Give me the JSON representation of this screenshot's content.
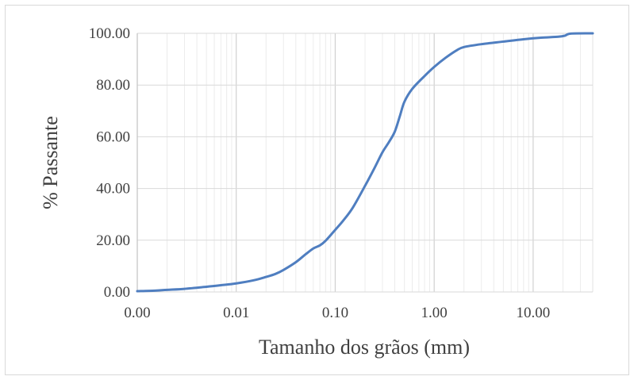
{
  "chart_data": {
    "type": "line",
    "title": "",
    "xlabel": "Tamanho dos grãos (mm)",
    "ylabel": "% Passante",
    "x_scale": "log",
    "xlim": [
      0.001,
      40
    ],
    "ylim": [
      0,
      100
    ],
    "x_ticks": [
      0.001,
      0.01,
      0.1,
      1,
      10
    ],
    "x_tick_labels": [
      "0.00",
      "0.01",
      "0.10",
      "1.00",
      "10.00"
    ],
    "y_ticks": [
      0,
      20,
      40,
      60,
      80,
      100
    ],
    "y_tick_labels": [
      "0.00",
      "20.00",
      "40.00",
      "60.00",
      "80.00",
      "100.00"
    ],
    "grid": true,
    "legend": "none",
    "series": [
      {
        "color": "#4f7ec0",
        "points": [
          [
            0.001,
            0.3
          ],
          [
            0.0015,
            0.5
          ],
          [
            0.002,
            0.8
          ],
          [
            0.003,
            1.2
          ],
          [
            0.005,
            2.0
          ],
          [
            0.007,
            2.6
          ],
          [
            0.01,
            3.3
          ],
          [
            0.015,
            4.5
          ],
          [
            0.02,
            5.8
          ],
          [
            0.025,
            7.0
          ],
          [
            0.03,
            8.5
          ],
          [
            0.04,
            11.5
          ],
          [
            0.05,
            14.5
          ],
          [
            0.06,
            16.8
          ],
          [
            0.07,
            18.0
          ],
          [
            0.08,
            19.8
          ],
          [
            0.1,
            24.0
          ],
          [
            0.12,
            27.5
          ],
          [
            0.15,
            32.5
          ],
          [
            0.2,
            41.0
          ],
          [
            0.25,
            48.0
          ],
          [
            0.3,
            54.0
          ],
          [
            0.35,
            58.0
          ],
          [
            0.4,
            62.0
          ],
          [
            0.45,
            68.0
          ],
          [
            0.5,
            73.5
          ],
          [
            0.6,
            78.5
          ],
          [
            0.8,
            83.5
          ],
          [
            1.0,
            87.0
          ],
          [
            1.3,
            90.5
          ],
          [
            1.7,
            93.5
          ],
          [
            2.0,
            94.7
          ],
          [
            3.0,
            95.8
          ],
          [
            5.0,
            96.8
          ],
          [
            8.0,
            97.7
          ],
          [
            12.0,
            98.3
          ],
          [
            18.0,
            98.7
          ],
          [
            21.0,
            99.1
          ],
          [
            24.0,
            99.9
          ],
          [
            40.0,
            100.0
          ]
        ]
      }
    ]
  }
}
